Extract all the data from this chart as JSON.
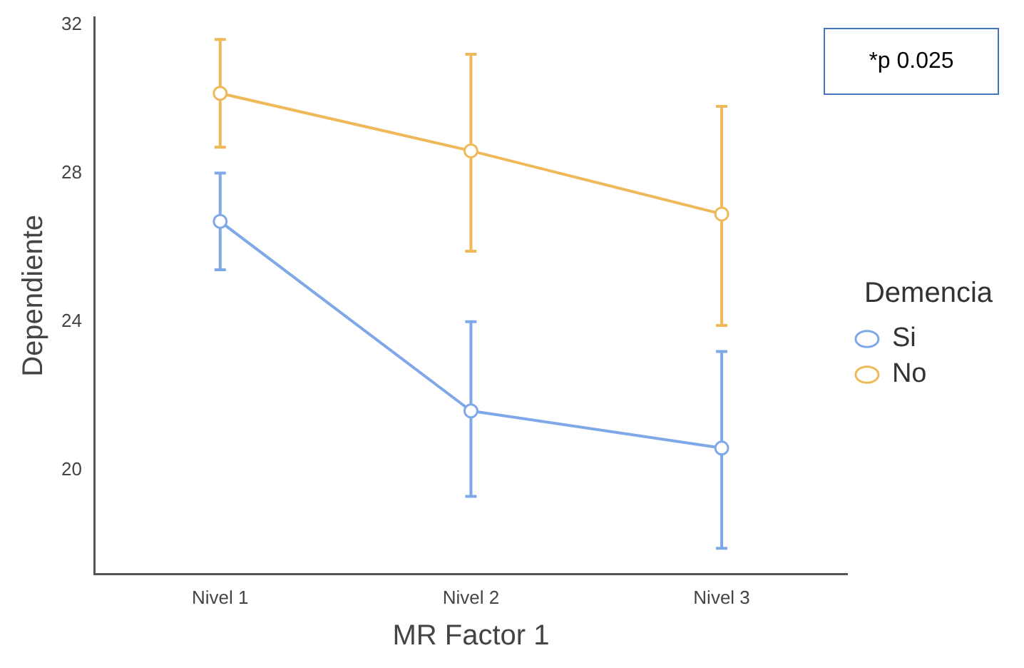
{
  "chart_data": {
    "type": "line",
    "xlabel": "MR Factor 1",
    "ylabel": "Dependiente",
    "legend_title": "Demencia",
    "legend": "right",
    "marker": "circle",
    "grid": false,
    "categories": [
      "Nivel 1",
      "Nivel 2",
      "Nivel 3"
    ],
    "series": [
      {
        "name": "Si",
        "color": "#7fa8e8",
        "values": [
          26.7,
          21.6,
          20.6
        ],
        "errors": [
          [
            25.4,
            28.0
          ],
          [
            19.3,
            24.0
          ],
          [
            17.9,
            23.2
          ]
        ]
      },
      {
        "name": "No",
        "color": "#efb95a",
        "values": [
          30.15,
          28.6,
          26.9
        ],
        "errors": [
          [
            28.7,
            31.6
          ],
          [
            25.9,
            31.2
          ],
          [
            23.9,
            29.8
          ]
        ]
      }
    ],
    "ylim": [
      17.2,
      32.2
    ],
    "yticks": [
      20,
      24,
      28,
      32
    ],
    "annotations": [
      "*p 0.025"
    ]
  }
}
